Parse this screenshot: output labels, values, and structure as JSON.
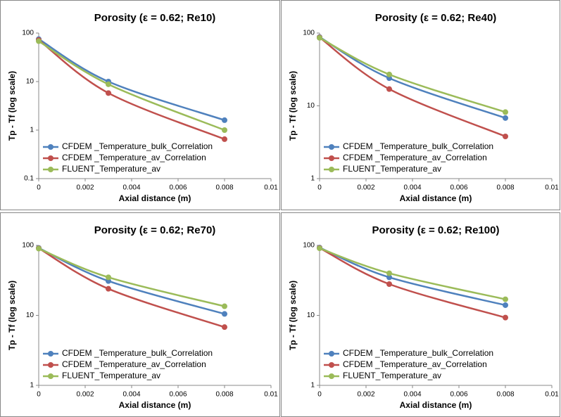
{
  "chart_data": [
    {
      "type": "line",
      "title": "Porosity (ε = 0.62; Re10)",
      "xlabel": "Axial distance  (m)",
      "ylabel": "Tp - Tf (log scale)",
      "x": [
        0,
        0.003,
        0.008
      ],
      "xlim": [
        0,
        0.01
      ],
      "xticks": [
        0,
        0.002,
        0.004,
        0.006,
        0.008,
        0.01
      ],
      "ylim": [
        0.1,
        100
      ],
      "yticks": [
        0.1,
        1,
        10,
        100
      ],
      "yscale": "log",
      "legend": "lower left",
      "series": [
        {
          "name": "CFDEM _Temperature_bulk_Correlation",
          "color": "#4f81bd",
          "values": [
            75,
            10,
            1.6
          ]
        },
        {
          "name": "CFDEM _Temperature_av_Correlation",
          "color": "#c0504d",
          "values": [
            72,
            5.8,
            0.65
          ]
        },
        {
          "name": "FLUENT_Temperature_av",
          "color": "#9bbb59",
          "values": [
            68,
            8.8,
            1.0
          ]
        }
      ]
    },
    {
      "type": "line",
      "title": "Porosity (ε = 0.62; Re40)",
      "xlabel": "Axial distance  (m)",
      "ylabel": "Tp - Tf (log scale)",
      "x": [
        0,
        0.003,
        0.008
      ],
      "xlim": [
        0,
        0.01
      ],
      "xticks": [
        0,
        0.002,
        0.004,
        0.006,
        0.008,
        0.01
      ],
      "ylim": [
        1,
        100
      ],
      "yticks": [
        1,
        10,
        100
      ],
      "yscale": "log",
      "legend": "lower left",
      "series": [
        {
          "name": "CFDEM _Temperature_bulk_Correlation",
          "color": "#4f81bd",
          "values": [
            88,
            24,
            6.8
          ]
        },
        {
          "name": "CFDEM _Temperature_av_Correlation",
          "color": "#c0504d",
          "values": [
            87,
            17,
            3.8
          ]
        },
        {
          "name": "FLUENT_Temperature_av",
          "color": "#9bbb59",
          "values": [
            86,
            27,
            8.2
          ]
        }
      ]
    },
    {
      "type": "line",
      "title": "Porosity (ε = 0.62; Re70)",
      "xlabel": "Axial distance  (m)",
      "ylabel": "Tp - Tf (log scale)",
      "x": [
        0,
        0.003,
        0.008
      ],
      "xlim": [
        0,
        0.01
      ],
      "xticks": [
        0,
        0.002,
        0.004,
        0.006,
        0.008,
        0.01
      ],
      "ylim": [
        1,
        100
      ],
      "yticks": [
        1,
        10,
        100
      ],
      "yscale": "log",
      "legend": "lower left",
      "series": [
        {
          "name": "CFDEM _Temperature_bulk_Correlation",
          "color": "#4f81bd",
          "values": [
            92,
            31,
            10.5
          ]
        },
        {
          "name": "CFDEM _Temperature_av_Correlation",
          "color": "#c0504d",
          "values": [
            91,
            24,
            6.8
          ]
        },
        {
          "name": "FLUENT_Temperature_av",
          "color": "#9bbb59",
          "values": [
            90,
            35,
            13.5
          ]
        }
      ]
    },
    {
      "type": "line",
      "title": "Porosity (ε = 0.62; Re100)",
      "xlabel": "Axial distance  (m)",
      "ylabel": "Tp - Tf (log scale)",
      "x": [
        0,
        0.003,
        0.008
      ],
      "xlim": [
        0,
        0.01
      ],
      "xticks": [
        0,
        0.002,
        0.004,
        0.006,
        0.008,
        0.01
      ],
      "ylim": [
        1,
        100
      ],
      "yticks": [
        1,
        10,
        100
      ],
      "yscale": "log",
      "legend": "lower left",
      "series": [
        {
          "name": "CFDEM _Temperature_bulk_Correlation",
          "color": "#4f81bd",
          "values": [
            93,
            35,
            14
          ]
        },
        {
          "name": "CFDEM _Temperature_av_Correlation",
          "color": "#c0504d",
          "values": [
            92,
            28,
            9.3
          ]
        },
        {
          "name": "FLUENT_Temperature_av",
          "color": "#9bbb59",
          "values": [
            91,
            40,
            17
          ]
        }
      ]
    }
  ]
}
